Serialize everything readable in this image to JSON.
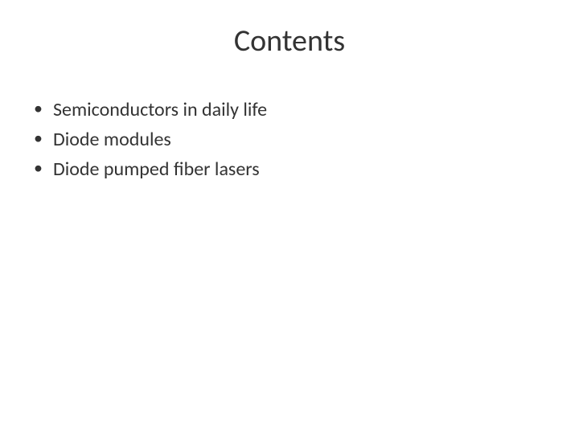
{
  "slide": {
    "title": "Contents",
    "title_fontsize": 38,
    "title_color": "#333333",
    "background_color": "#ffffff",
    "bullets": [
      "Semiconductors in daily life",
      "Diode modules",
      "Diode pumped fiber lasers"
    ],
    "bullet_fontsize": 24,
    "bullet_color": "#333333",
    "bullet_marker_color": "#333333"
  }
}
